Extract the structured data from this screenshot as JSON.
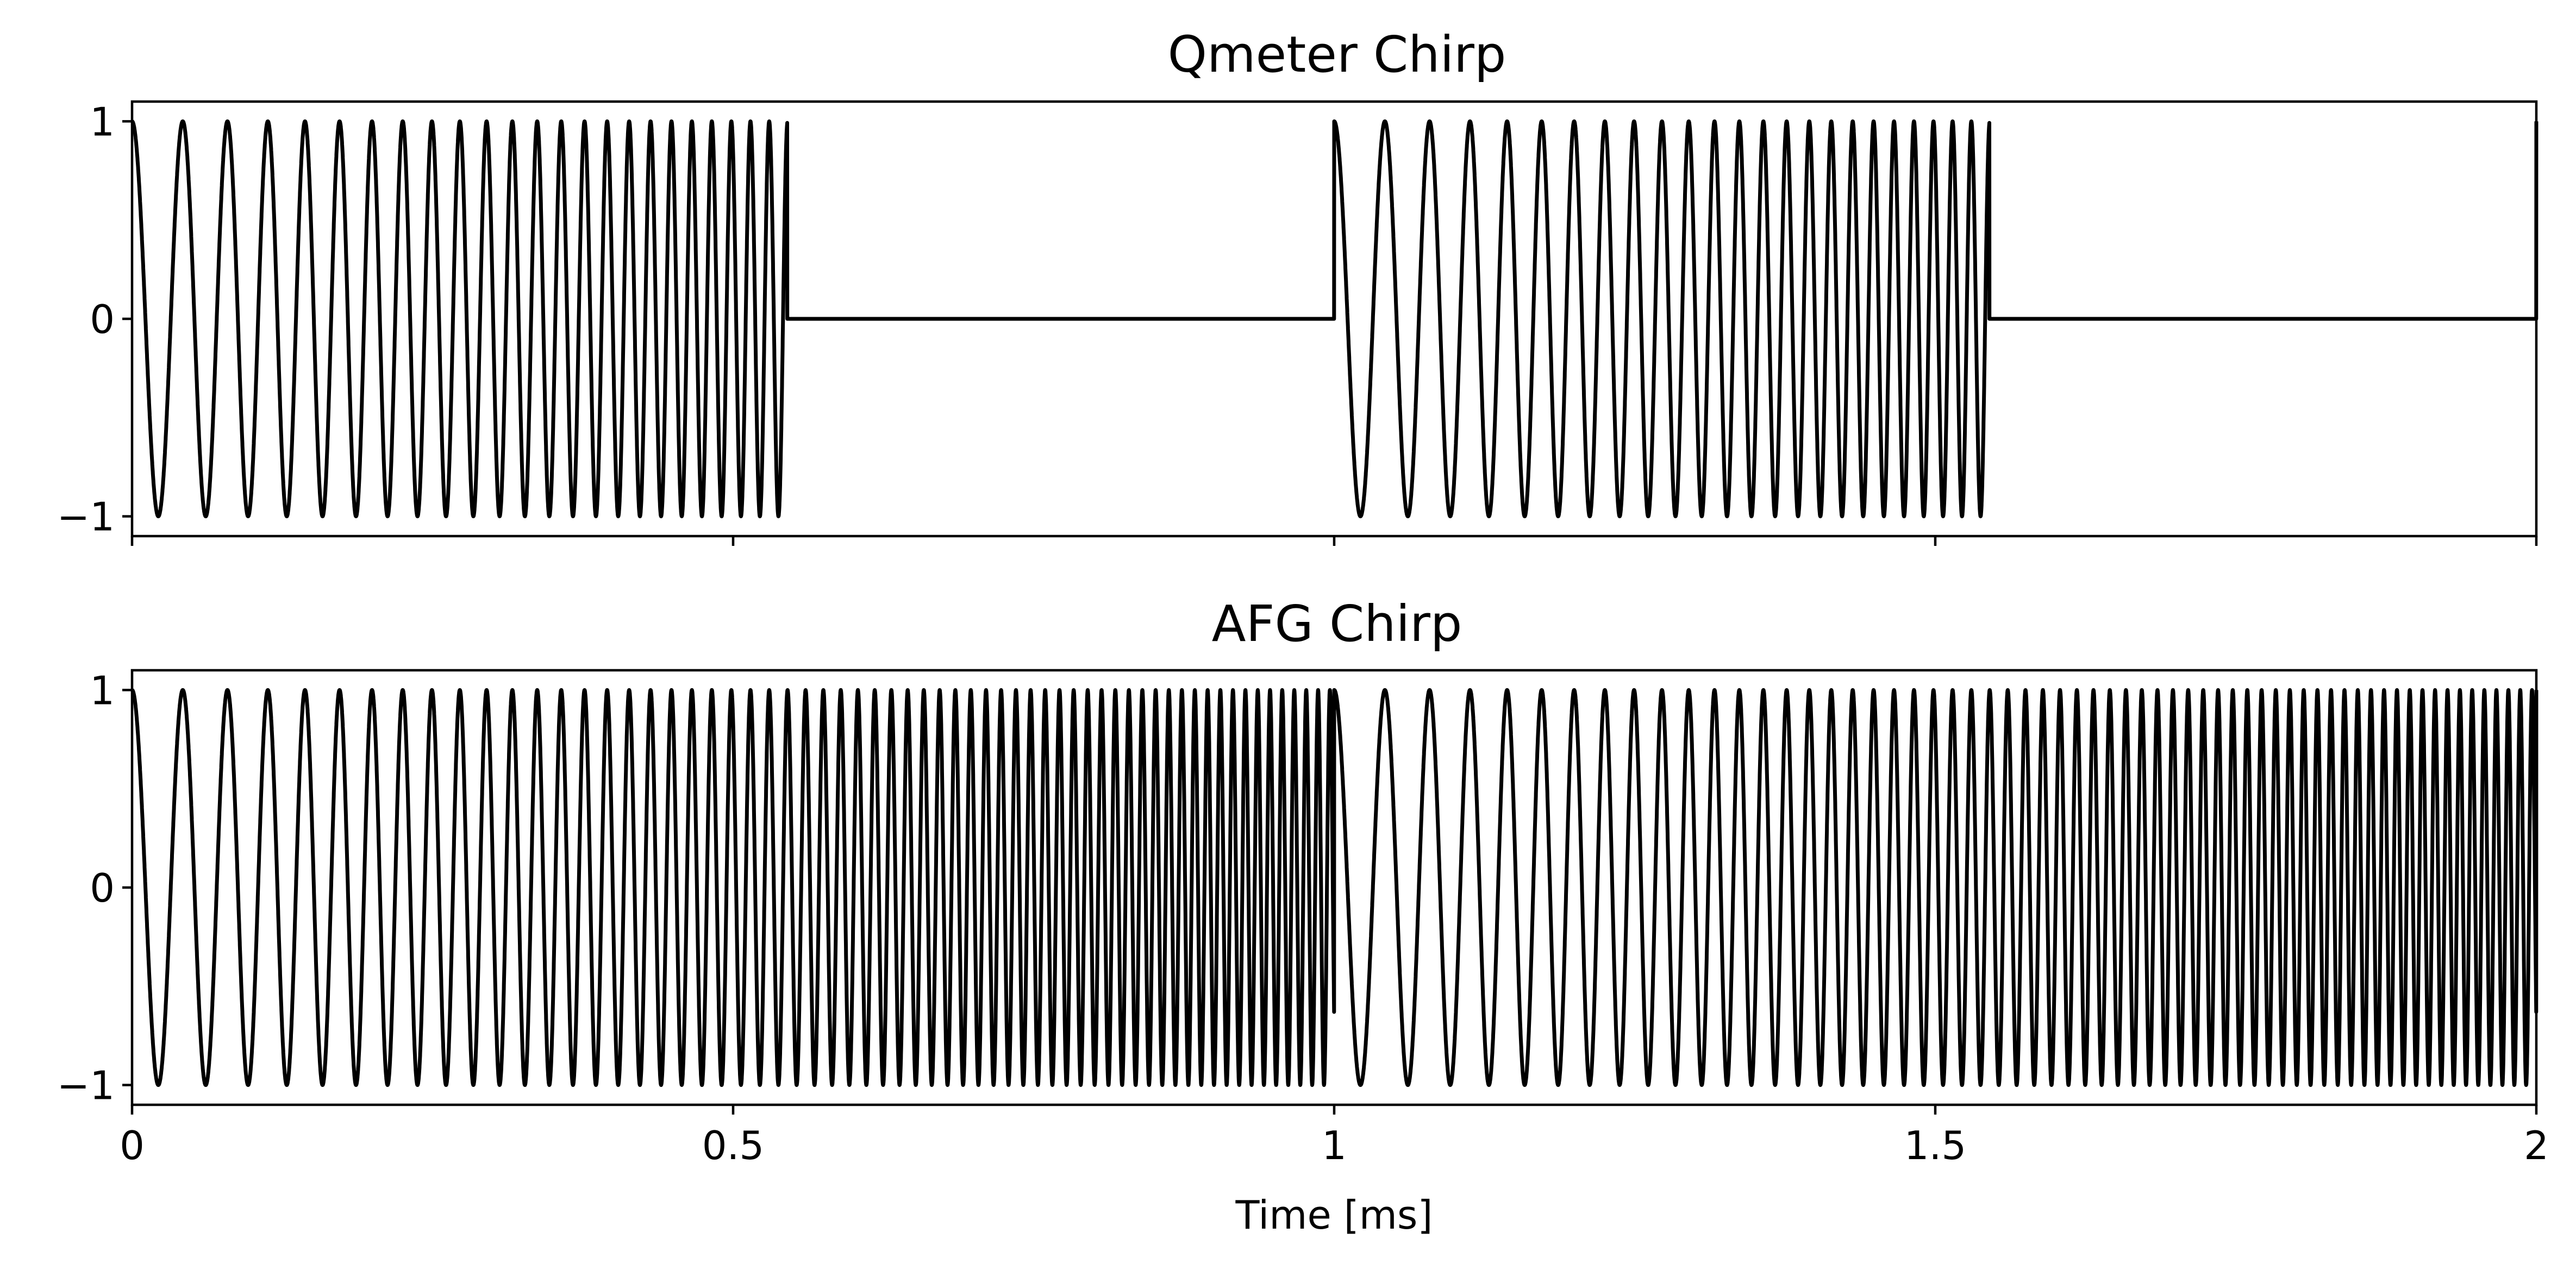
{
  "chart_data": [
    {
      "type": "line",
      "title": "Qmeter Chirp",
      "xlim": [
        0,
        2
      ],
      "ylim": [
        -1.1,
        1.1
      ],
      "x_unit": "ms",
      "yticks": [
        -1,
        0,
        1
      ],
      "ytick_labels": [
        "−1",
        "0",
        "1"
      ],
      "xticks": [
        0,
        0.5,
        1,
        1.5,
        2
      ],
      "xtick_labels_visible": false,
      "grid": false,
      "legend": "none",
      "color": "#000000",
      "signal": {
        "kind": "gated-linear-chirp",
        "amplitude": 1,
        "period_ms": 1,
        "burst_duration_ms": 0.545,
        "start_frequency_khz": 22,
        "end_frequency_khz": 66,
        "sweep_duration_ms": 0.545,
        "off_level": 0
      }
    },
    {
      "type": "line",
      "title": "AFG Chirp",
      "xlabel": "Time [ms]",
      "xlim": [
        0,
        2
      ],
      "ylim": [
        -1.1,
        1.1
      ],
      "x_unit": "ms",
      "yticks": [
        -1,
        0,
        1
      ],
      "ytick_labels": [
        "−1",
        "0",
        "1"
      ],
      "xticks": [
        0,
        0.5,
        1,
        1.5,
        2
      ],
      "xtick_labels": [
        "0",
        "0.5",
        "1",
        "1.5",
        "2"
      ],
      "grid": false,
      "legend": "none",
      "color": "#000000",
      "signal": {
        "kind": "linear-chirp",
        "amplitude": 1,
        "period_ms": 1,
        "start_frequency_khz": 22,
        "end_frequency_khz": 66,
        "sweep_duration_ms": 0.545
      }
    }
  ]
}
